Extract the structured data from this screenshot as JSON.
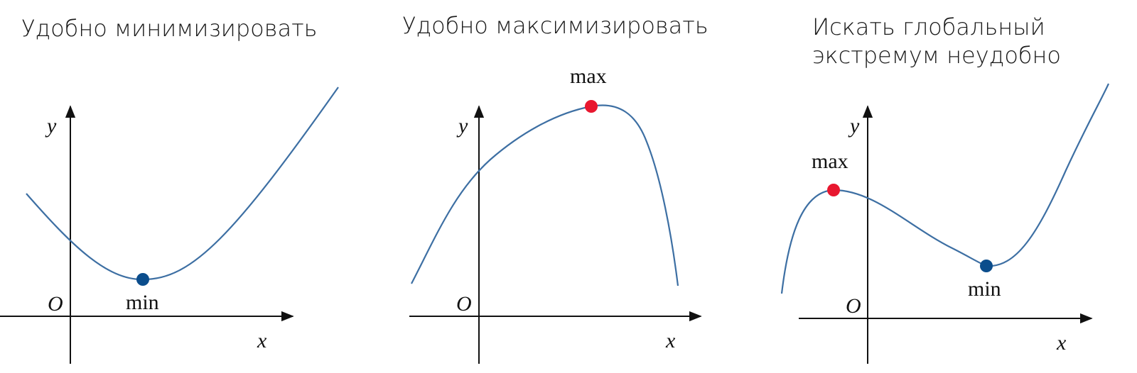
{
  "colors": {
    "curve": "#3d6fa3",
    "axis": "#111111",
    "max_point": "#e8172f",
    "min_point": "#0b4d8c"
  },
  "panels": [
    {
      "title_lines": [
        "Удобно минимизировать"
      ],
      "axis_x_label": "x",
      "axis_y_label": "y",
      "origin_label": "O",
      "points": [
        {
          "label": "min",
          "kind": "minimum"
        }
      ]
    },
    {
      "title_lines": [
        "Удобно максимизировать"
      ],
      "axis_x_label": "x",
      "axis_y_label": "y",
      "origin_label": "O",
      "points": [
        {
          "label": "max",
          "kind": "maximum"
        }
      ]
    },
    {
      "title_lines": [
        "Искать глобальный",
        "экстремум неудобно"
      ],
      "axis_x_label": "x",
      "axis_y_label": "y",
      "origin_label": "O",
      "points": [
        {
          "label": "max",
          "kind": "maximum"
        },
        {
          "label": "min",
          "kind": "minimum"
        }
      ]
    }
  ]
}
